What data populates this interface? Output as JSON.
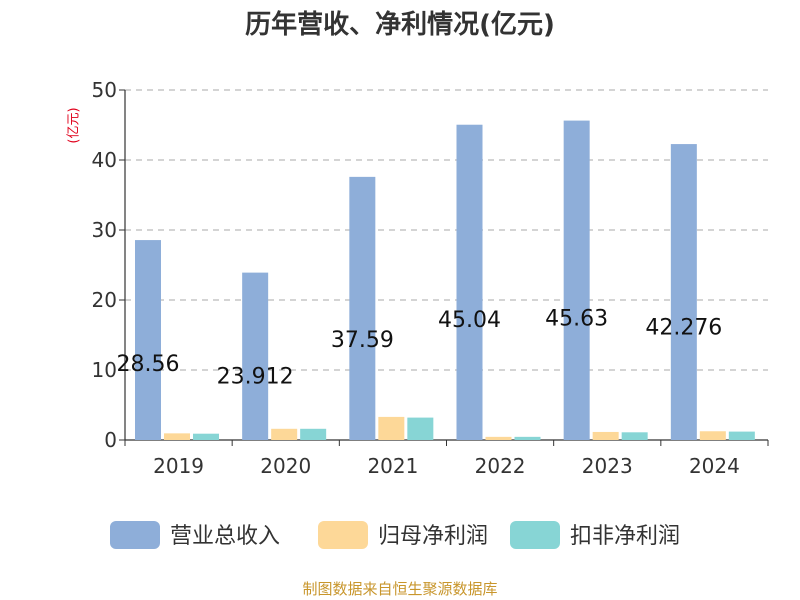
{
  "title": "历年营收、净利情况(亿元)",
  "unit_label": "(亿元)",
  "source": "制图数据来自恒生聚源数据库",
  "colors": {
    "revenue": "#8eaed9",
    "parent_net_profit": "#fdd898",
    "deducted_net_profit": "#87d5d5",
    "grid": "#aaaaaa",
    "axis": "#333333",
    "unit_text": "#e0001b",
    "source_text": "#c8962c"
  },
  "chart_data": {
    "type": "bar",
    "title": "历年营收、净利情况(亿元)",
    "ylabel": "(亿元)",
    "categories": [
      "2019",
      "2020",
      "2021",
      "2022",
      "2023",
      "2024"
    ],
    "ylim": [
      0,
      50
    ],
    "yticks": [
      "0",
      "10",
      "20",
      "30",
      "40",
      "50"
    ],
    "grid": true,
    "legend_position": "bottom",
    "series": [
      {
        "name": "营业总收入",
        "color": "#8eaed9",
        "values": [
          28.56,
          23.912,
          37.59,
          45.04,
          45.63,
          42.276
        ],
        "data_labels": [
          "28.56",
          "23.912",
          "37.59",
          "45.04",
          "45.63",
          "42.276"
        ]
      },
      {
        "name": "归母净利润",
        "color": "#fdd898",
        "values": [
          0.95,
          1.6,
          3.3,
          0.45,
          1.15,
          1.25
        ]
      },
      {
        "name": "扣非净利润",
        "color": "#87d5d5",
        "values": [
          0.9,
          1.6,
          3.2,
          0.45,
          1.1,
          1.2
        ]
      }
    ]
  }
}
